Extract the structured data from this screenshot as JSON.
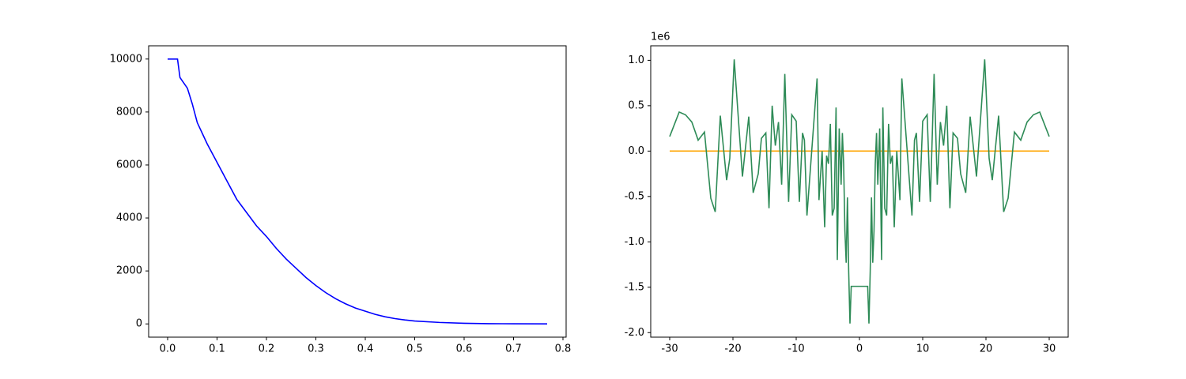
{
  "chart_data": [
    {
      "type": "line",
      "xlim": [
        -0.0384,
        0.8064
      ],
      "ylim": [
        -500,
        10500
      ],
      "xticks": [
        {
          "value": 0,
          "label": "0.0"
        },
        0.1,
        0.2,
        0.3,
        0.4,
        0.5,
        0.6,
        0.7,
        0.8
      ],
      "yticks": [
        0,
        2000,
        4000,
        6000,
        8000,
        10000
      ],
      "series": [
        {
          "color": "#0000ff",
          "x": [
            0,
            0.02,
            0.025,
            0.04,
            0.05,
            0.06,
            0.08,
            0.1,
            0.12,
            0.14,
            0.16,
            0.18,
            0.2,
            0.22,
            0.24,
            0.26,
            0.28,
            0.3,
            0.32,
            0.34,
            0.36,
            0.38,
            0.4,
            0.42,
            0.44,
            0.46,
            0.48,
            0.5,
            0.55,
            0.6,
            0.65,
            0.7,
            0.768
          ],
          "values": [
            10000,
            10000,
            9300,
            8900,
            8300,
            7600,
            6800,
            6100,
            5400,
            4700,
            4200,
            3700,
            3300,
            2850,
            2450,
            2100,
            1750,
            1450,
            1180,
            950,
            760,
            600,
            480,
            360,
            270,
            200,
            150,
            110,
            55,
            25,
            10,
            4,
            1
          ]
        }
      ]
    },
    {
      "type": "line",
      "offset_text": "1e6",
      "xlim": [
        -33,
        33
      ],
      "ylim": [
        -2.05,
        1.16
      ],
      "xticks": [
        -30,
        -20,
        -10,
        0,
        10,
        20,
        30
      ],
      "yticks": [
        {
          "value": -2,
          "label": "-2.0"
        },
        -1.5,
        {
          "value": -1,
          "label": "-1.0"
        },
        -0.5,
        {
          "value": 0,
          "label": "0.0"
        },
        0.5,
        {
          "value": 1,
          "label": "1.0"
        }
      ],
      "series": [
        {
          "color": "#ffa500",
          "x": [
            -30,
            30
          ],
          "values": [
            0,
            0
          ]
        },
        {
          "color": "#2e8b57",
          "x": [
            -30,
            -28.5,
            -27.5,
            -26.5,
            -25.5,
            -24.5,
            -23.5,
            -22.8,
            -22,
            -21,
            -20.5,
            -19.8,
            -18.5,
            -17.5,
            -16.8,
            -16,
            -15.5,
            -14.8,
            -14.3,
            -13.8,
            -13.3,
            -12.8,
            -12.3,
            -11.8,
            -11.2,
            -10.7,
            -10,
            -9.5,
            -9,
            -8.7,
            -8.3,
            -6.7,
            -6.4,
            -5.9,
            -5.5,
            -5.2,
            -4.9,
            -4.6,
            -4.3,
            -4,
            -3.7,
            -3.5,
            -3.2,
            -2.9,
            -2.7,
            -2.5,
            -2.3,
            -2.1,
            -1.9,
            -1.7,
            -1.5,
            -1.3,
            1.3,
            1.5,
            1.7,
            1.9,
            2.1,
            2.3,
            2.5,
            2.7,
            2.9,
            3.2,
            3.5,
            3.7,
            4,
            4.3,
            4.6,
            4.9,
            5.2,
            5.5,
            5.9,
            6.4,
            6.7,
            8.3,
            8.7,
            9,
            9.5,
            10,
            10.7,
            11.2,
            11.8,
            12.3,
            12.8,
            13.3,
            13.8,
            14.3,
            14.8,
            15.5,
            16,
            16.8,
            17.5,
            18.5,
            19.8,
            20.5,
            21,
            22,
            22.8,
            23.5,
            24.5,
            25.5,
            26.5,
            27.5,
            28.5,
            30
          ],
          "values": [
            0.16,
            0.43,
            0.4,
            0.32,
            0.12,
            0.21,
            -0.52,
            -0.67,
            0.39,
            -0.32,
            -0.08,
            1.01,
            -0.28,
            0.38,
            -0.46,
            -0.25,
            0.14,
            0.2,
            -0.63,
            0.5,
            0.06,
            0.32,
            -0.37,
            0.85,
            -0.56,
            0.4,
            0.33,
            -0.56,
            0.2,
            0.12,
            -0.71,
            0.8,
            -0.54,
            0.0,
            -0.84,
            -0.05,
            -0.14,
            0.3,
            -0.71,
            -0.63,
            0.48,
            -1.2,
            0.25,
            -0.37,
            0.2,
            -0.14,
            -0.88,
            -1.23,
            -0.51,
            -1.33,
            -1.9,
            -1.49,
            -1.49,
            -1.9,
            -1.33,
            -0.51,
            -1.23,
            -0.88,
            -0.14,
            0.2,
            -0.37,
            0.25,
            -1.2,
            0.48,
            -0.63,
            -0.71,
            0.3,
            -0.14,
            -0.05,
            -0.84,
            0.0,
            -0.54,
            0.8,
            -0.71,
            0.12,
            0.2,
            -0.56,
            0.33,
            0.4,
            -0.56,
            0.85,
            -0.37,
            0.32,
            0.06,
            0.5,
            -0.63,
            0.2,
            0.14,
            -0.25,
            -0.46,
            0.38,
            -0.28,
            1.01,
            -0.08,
            -0.32,
            0.39,
            -0.67,
            -0.52,
            0.21,
            0.12,
            0.32,
            0.4,
            0.43,
            0.16
          ]
        }
      ]
    }
  ]
}
